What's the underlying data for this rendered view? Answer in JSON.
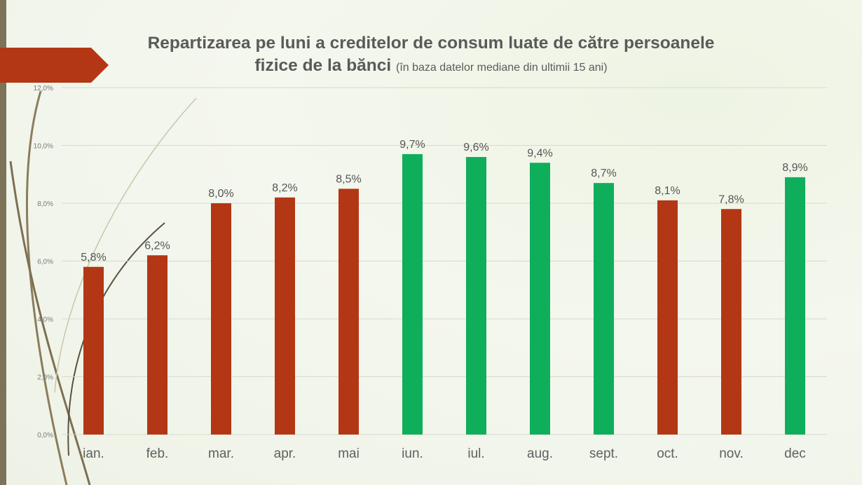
{
  "title": "Repartizarea pe luni a creditelor de consum luate de către persoanele fizice de la bănci",
  "title_line1": "Repartizarea pe luni a creditelor de consum luate de către persoanele",
  "title_line2": "fizice de la bănci",
  "subtitle": "(în baza datelor mediane din ultimii 15 ani)",
  "colors": {
    "red": "#b33714",
    "green": "#0fae5a",
    "strip": "#7d7358"
  },
  "chart_data": {
    "type": "bar",
    "categories": [
      "ian.",
      "feb.",
      "mar.",
      "apr.",
      "mai",
      "iun.",
      "iul.",
      "aug.",
      "sept.",
      "oct.",
      "nov.",
      "dec"
    ],
    "values": [
      5.8,
      6.2,
      8.0,
      8.2,
      8.5,
      9.7,
      9.6,
      9.4,
      8.7,
      8.1,
      7.8,
      8.9
    ],
    "data_labels": [
      "5,8%",
      "6,2%",
      "8,0%",
      "8,2%",
      "8,5%",
      "9,7%",
      "9,6%",
      "9,4%",
      "8,7%",
      "8,1%",
      "7,8%",
      "8,9%"
    ],
    "bar_colors": [
      "#b33714",
      "#b33714",
      "#b33714",
      "#b33714",
      "#b33714",
      "#0fae5a",
      "#0fae5a",
      "#0fae5a",
      "#0fae5a",
      "#b33714",
      "#b33714",
      "#0fae5a"
    ],
    "ylim": [
      0,
      12
    ],
    "yticks": [
      0,
      2,
      4,
      6,
      8,
      10,
      12
    ],
    "ytick_labels": [
      "0,0%",
      "2,0%",
      "4,0%",
      "6,0%",
      "8,0%",
      "10,0%",
      "12,0%"
    ],
    "grid": true,
    "legend": "none"
  }
}
